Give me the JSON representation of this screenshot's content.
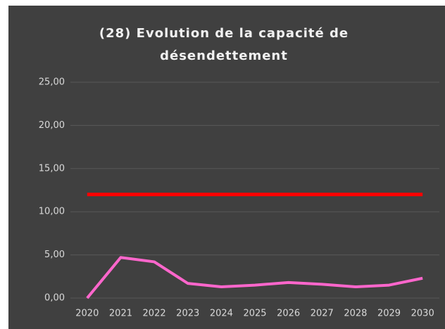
{
  "chart_data": {
    "type": "line",
    "title_lines": [
      "(28) Evolution de la capacité de",
      "désendettement"
    ],
    "categories": [
      "2020",
      "2021",
      "2022",
      "2023",
      "2024",
      "2025",
      "2026",
      "2027",
      "2028",
      "2029",
      "2030"
    ],
    "series": [
      {
        "color": "#ff0000",
        "values": [
          12,
          12,
          12,
          12,
          12,
          12,
          12,
          12,
          12,
          12,
          12
        ]
      },
      {
        "color": "#ff66cc",
        "values": [
          0,
          4.7,
          4.2,
          1.7,
          1.3,
          1.5,
          1.8,
          1.6,
          1.3,
          1.5,
          2.3
        ]
      }
    ],
    "ylim": [
      0,
      25
    ],
    "yticks": [
      {
        "value": 0,
        "label": "0,00"
      },
      {
        "value": 5,
        "label": "5,00"
      },
      {
        "value": 10,
        "label": "10,00"
      },
      {
        "value": 15,
        "label": "15,00"
      },
      {
        "value": 20,
        "label": "20,00"
      },
      {
        "value": 25,
        "label": "25,00"
      }
    ],
    "grid": true
  }
}
